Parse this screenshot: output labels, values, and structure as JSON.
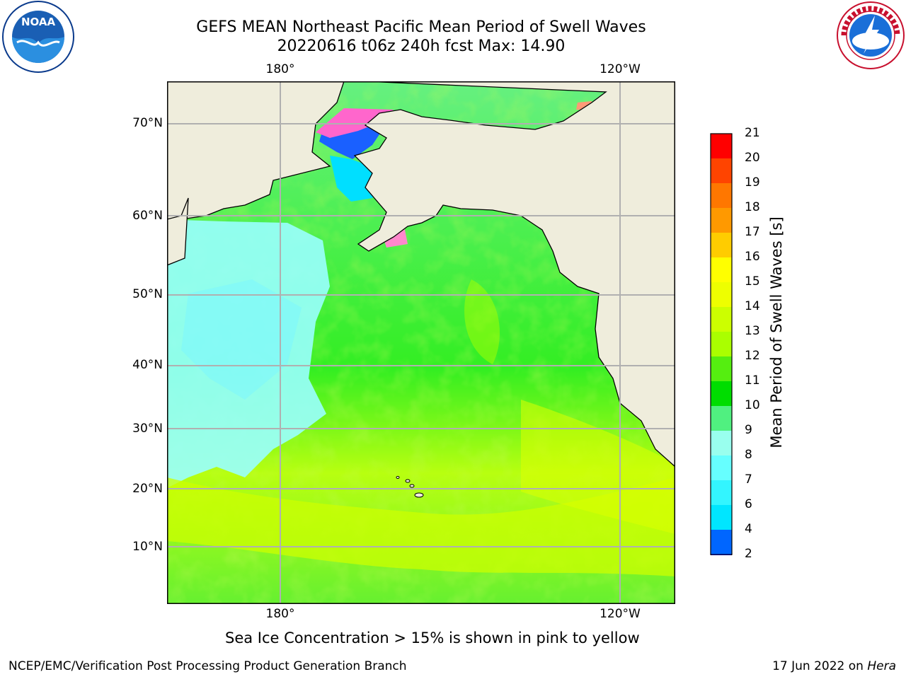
{
  "header": {
    "title_line1": "GEFS MEAN Northeast Pacific Mean Period of Swell Waves",
    "title_line2": "20220616 t06z 240h fcst   Max: 14.90"
  },
  "logos": {
    "left": {
      "text": "NOAA",
      "icon": "noaa-logo-icon"
    },
    "right": {
      "icon": "nws-logo-icon"
    }
  },
  "map": {
    "lat_labels": [
      "70°N",
      "60°N",
      "50°N",
      "40°N",
      "30°N",
      "20°N",
      "10°N"
    ],
    "lon_labels_top": [
      "180°",
      "120°W"
    ],
    "lon_labels_bottom": [
      "180°",
      "120°W"
    ],
    "colors": {
      "land": "#efeddc",
      "grid": "#b0b0b0"
    }
  },
  "colorbar": {
    "title": "Mean Period of Swell Waves [s]",
    "ticks": [
      "2",
      "4",
      "6",
      "7",
      "8",
      "9",
      "10",
      "11",
      "12",
      "13",
      "14",
      "15",
      "16",
      "17",
      "18",
      "19",
      "20",
      "21"
    ],
    "colors": [
      "#0066ff",
      "#00e6ff",
      "#33f5ff",
      "#66ffff",
      "#99ffee",
      "#50f080",
      "#00dd00",
      "#55ee10",
      "#aaff00",
      "#ccff00",
      "#eeff00",
      "#ffff00",
      "#ffcc00",
      "#ff9900",
      "#ff7700",
      "#ff4400",
      "#ff0000"
    ],
    "under_color": "#0000ff"
  },
  "caption": "Sea Ice Concentration > 15% is shown in pink to yellow",
  "footer": {
    "left": "NCEP/EMC/Verification Post Processing Product Generation Branch",
    "right_prefix": "17 Jun 2022 on ",
    "right_host": "Hera"
  }
}
